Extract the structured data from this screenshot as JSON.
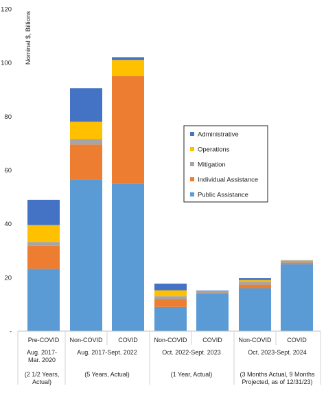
{
  "chart_data": {
    "type": "bar",
    "stacked": true,
    "ylabel": "Nominal $, Billions",
    "ylim": [
      0,
      120
    ],
    "yticks": [
      "-",
      "20",
      "40",
      "60",
      "80",
      "100",
      "120"
    ],
    "grid": false,
    "legend_position": "right",
    "categories": [
      "Pre-COVID",
      "Non-COVID",
      "COVID",
      "Non-COVID",
      "COVID",
      "Non-COVID",
      "COVID"
    ],
    "groups": [
      {
        "lines": [
          "Aug. 2017-",
          "Mar. 2020",
          "",
          "(2 1/2 Years,",
          "Actual)"
        ]
      },
      {
        "lines": [
          "Aug. 2017-Sept. 2022",
          "",
          "",
          "(5 Years, Actual)",
          ""
        ]
      },
      {
        "lines": [
          "Oct. 2022-Sept. 2023",
          "",
          "",
          "(1 Year, Actual)",
          ""
        ]
      },
      {
        "lines": [
          "Oct. 2023-Sept. 2024",
          "",
          "",
          "(3 Months Actual, 9 Months",
          "Projected, as of 12/31/23)"
        ]
      }
    ],
    "series": [
      {
        "name": "Public Assistance",
        "color": "#5b9bd5",
        "values": [
          23.2,
          56.5,
          54.8,
          9.0,
          14.0,
          16.0,
          25.0
        ]
      },
      {
        "name": "Individual Assistance",
        "color": "#ed7d31",
        "values": [
          8.6,
          13.0,
          40.2,
          3.0,
          0.3,
          1.3,
          0.5
        ]
      },
      {
        "name": "Mitigation",
        "color": "#a5a5a5",
        "values": [
          1.4,
          2.0,
          0.0,
          1.0,
          0.4,
          1.2,
          0.7
        ]
      },
      {
        "name": "Operations",
        "color": "#ffc000",
        "values": [
          6.3,
          6.5,
          6.0,
          2.2,
          0.1,
          0.5,
          0.1
        ]
      },
      {
        "name": "Administrative",
        "color": "#4472c4",
        "values": [
          9.4,
          12.5,
          1.0,
          2.5,
          0.3,
          0.7,
          0.1
        ]
      }
    ],
    "legend_order": [
      "Administrative",
      "Operations",
      "Mitigation",
      "Individual Assistance",
      "Public Assistance"
    ]
  }
}
